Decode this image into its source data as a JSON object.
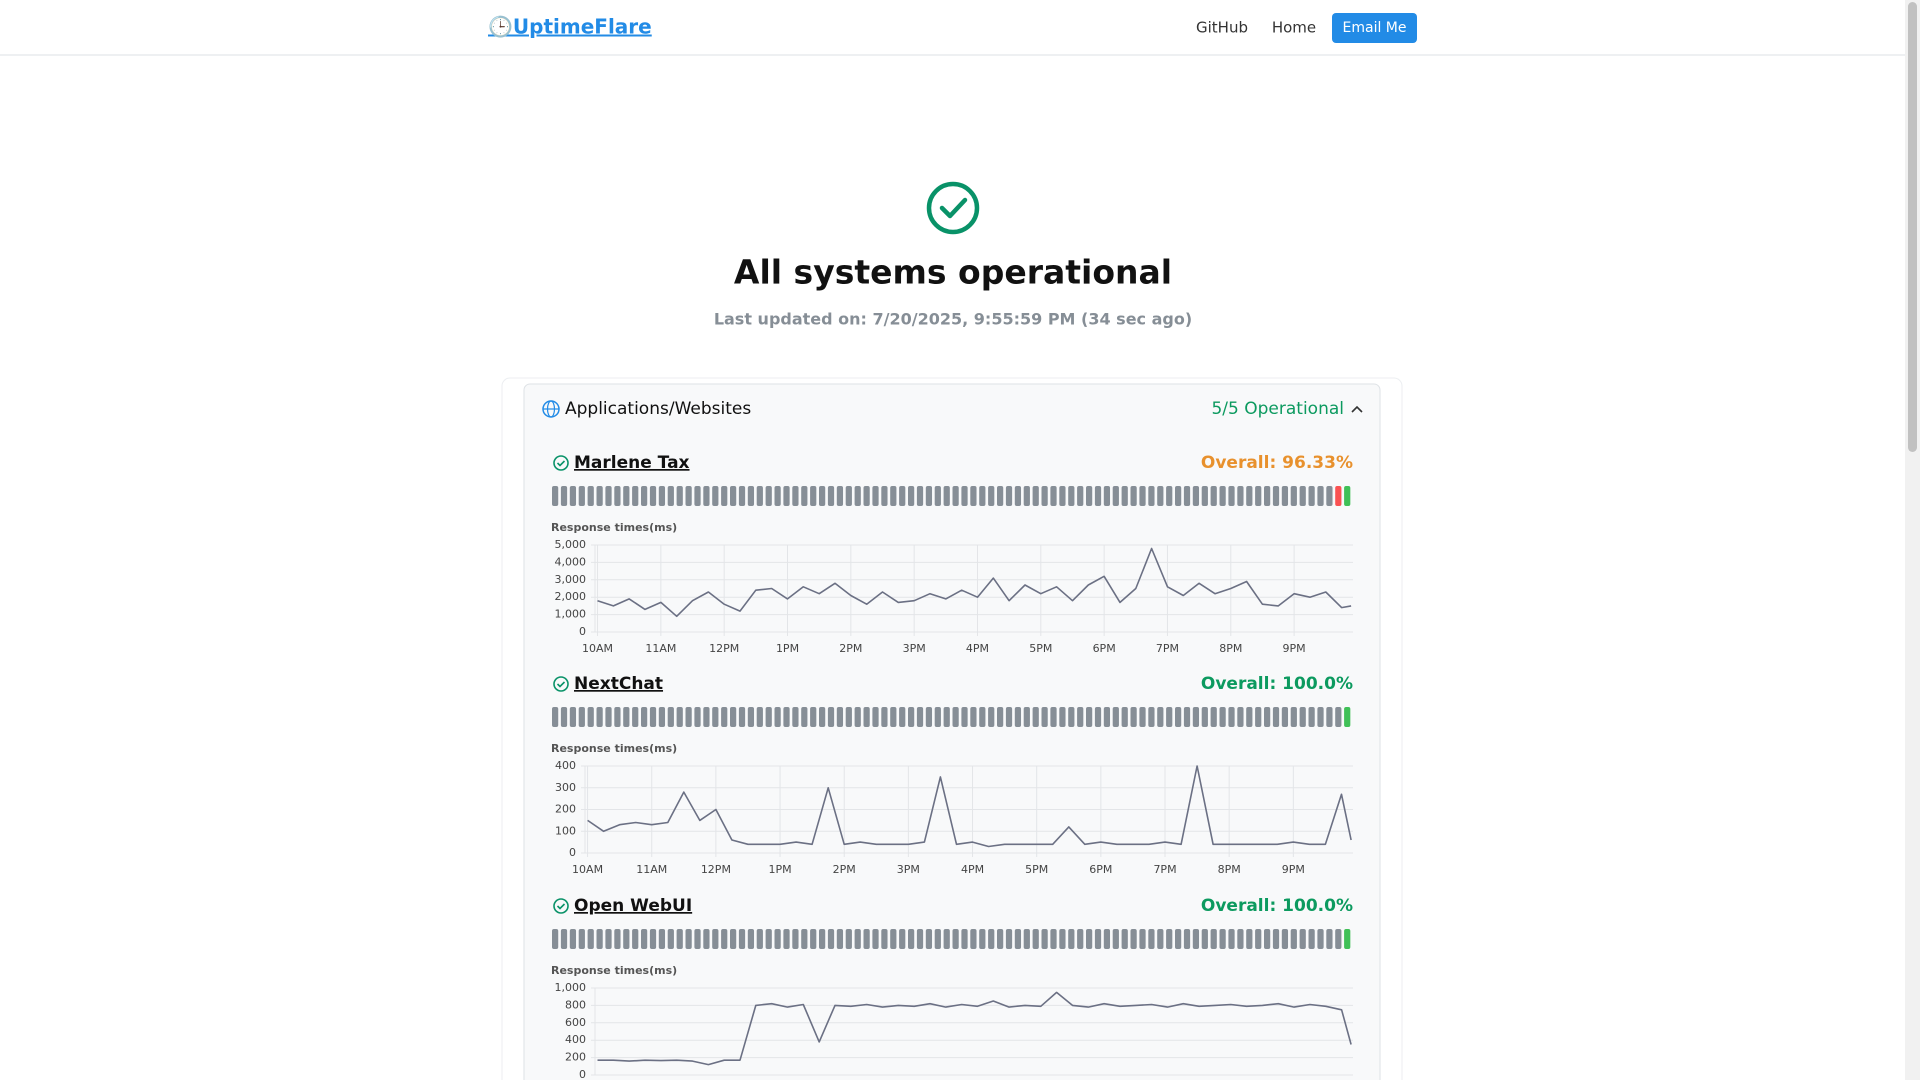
{
  "header": {
    "logo": "🕒UptimeFlare",
    "nav": [
      "GitHub",
      "Home"
    ],
    "button": "Email Me"
  },
  "status": {
    "title": "All systems operational",
    "updated": "Last updated on: 7/20/2025, 9:55:59 PM (34 sec ago)"
  },
  "group": {
    "name": "Applications/Websites",
    "status": "5/5 Operational"
  },
  "monitors": [
    {
      "name": "Marlene Tax",
      "overall": "Overall: 96.33%",
      "overall_color": "#e8912d",
      "bars": [
        "#868e96",
        "#868e96",
        "#868e96",
        "#868e96",
        "#868e96",
        "#868e96",
        "#868e96",
        "#868e96",
        "#868e96",
        "#868e96",
        "#868e96",
        "#868e96",
        "#868e96",
        "#868e96",
        "#868e96",
        "#868e96",
        "#868e96",
        "#868e96",
        "#868e96",
        "#868e96",
        "#868e96",
        "#868e96",
        "#868e96",
        "#868e96",
        "#868e96",
        "#868e96",
        "#868e96",
        "#868e96",
        "#868e96",
        "#868e96",
        "#868e96",
        "#868e96",
        "#868e96",
        "#868e96",
        "#868e96",
        "#868e96",
        "#868e96",
        "#868e96",
        "#868e96",
        "#868e96",
        "#868e96",
        "#868e96",
        "#868e96",
        "#868e96",
        "#868e96",
        "#868e96",
        "#868e96",
        "#868e96",
        "#868e96",
        "#868e96",
        "#868e96",
        "#868e96",
        "#868e96",
        "#868e96",
        "#868e96",
        "#868e96",
        "#868e96",
        "#868e96",
        "#868e96",
        "#868e96",
        "#868e96",
        "#868e96",
        "#868e96",
        "#868e96",
        "#868e96",
        "#868e96",
        "#868e96",
        "#868e96",
        "#868e96",
        "#868e96",
        "#868e96",
        "#868e96",
        "#868e96",
        "#868e96",
        "#868e96",
        "#868e96",
        "#868e96",
        "#868e96",
        "#868e96",
        "#868e96",
        "#868e96",
        "#868e96",
        "#868e96",
        "#868e96",
        "#868e96",
        "#868e96",
        "#868e96",
        "#868e96",
        "#fa5252",
        "#40c057"
      ],
      "chart": {
        "type": "line",
        "ylabel": "Response times(ms)",
        "color": "#6b7084",
        "x": [
          10,
          10.25,
          10.5,
          10.75,
          11,
          11.25,
          11.5,
          11.75,
          12,
          12.25,
          12.5,
          12.75,
          13,
          13.25,
          13.5,
          13.75,
          14,
          14.25,
          14.5,
          14.75,
          15,
          15.25,
          15.5,
          15.75,
          16,
          16.25,
          16.5,
          16.75,
          17,
          17.25,
          17.5,
          17.75,
          18,
          18.25,
          18.5,
          18.75,
          19,
          19.25,
          19.5,
          19.75,
          20,
          20.25,
          20.5,
          20.75,
          21,
          21.25,
          21.5,
          21.75,
          21.9
        ],
        "values": [
          1800,
          1500,
          1900,
          1300,
          1700,
          900,
          1800,
          2300,
          1600,
          1200,
          2400,
          2500,
          1900,
          2600,
          2200,
          2800,
          2100,
          1600,
          2300,
          1700,
          1800,
          2200,
          1900,
          2400,
          2000,
          3100,
          1800,
          2700,
          2200,
          2600,
          1800,
          2700,
          3200,
          1700,
          2500,
          4800,
          2600,
          2100,
          2800,
          2200,
          2500,
          2900,
          1600,
          1500,
          2200,
          2000,
          2300,
          1400,
          1500
        ],
        "xlim": [
          9.96,
          21.93
        ],
        "ylim": [
          0,
          5000
        ],
        "yticks": [
          0,
          {
            "value": 1000,
            "label": "1,000"
          },
          {
            "value": 2000,
            "label": "2,000"
          },
          {
            "value": 3000,
            "label": "3,000"
          },
          {
            "value": 4000,
            "label": "4,000"
          },
          {
            "value": 5000,
            "label": "5,000"
          }
        ],
        "xticks": [
          {
            "value": 10,
            "label": "10AM"
          },
          {
            "value": 11,
            "label": "11AM"
          },
          {
            "value": 12,
            "label": "12PM"
          },
          {
            "value": 13,
            "label": "1PM"
          },
          {
            "value": 14,
            "label": "2PM"
          },
          {
            "value": 15,
            "label": "3PM"
          },
          {
            "value": 16,
            "label": "4PM"
          },
          {
            "value": 17,
            "label": "5PM"
          },
          {
            "value": 18,
            "label": "6PM"
          },
          {
            "value": 19,
            "label": "7PM"
          },
          {
            "value": 20,
            "label": "8PM"
          },
          {
            "value": 21,
            "label": "9PM"
          }
        ],
        "grid": true
      }
    },
    {
      "name": "NextChat",
      "overall": "Overall: 100.0%",
      "overall_color": "#0c9a5f",
      "bars": [
        "#868e96",
        "#868e96",
        "#868e96",
        "#868e96",
        "#868e96",
        "#868e96",
        "#868e96",
        "#868e96",
        "#868e96",
        "#868e96",
        "#868e96",
        "#868e96",
        "#868e96",
        "#868e96",
        "#868e96",
        "#868e96",
        "#868e96",
        "#868e96",
        "#868e96",
        "#868e96",
        "#868e96",
        "#868e96",
        "#868e96",
        "#868e96",
        "#868e96",
        "#868e96",
        "#868e96",
        "#868e96",
        "#868e96",
        "#868e96",
        "#868e96",
        "#868e96",
        "#868e96",
        "#868e96",
        "#868e96",
        "#868e96",
        "#868e96",
        "#868e96",
        "#868e96",
        "#868e96",
        "#868e96",
        "#868e96",
        "#868e96",
        "#868e96",
        "#868e96",
        "#868e96",
        "#868e96",
        "#868e96",
        "#868e96",
        "#868e96",
        "#868e96",
        "#868e96",
        "#868e96",
        "#868e96",
        "#868e96",
        "#868e96",
        "#868e96",
        "#868e96",
        "#868e96",
        "#868e96",
        "#868e96",
        "#868e96",
        "#868e96",
        "#868e96",
        "#868e96",
        "#868e96",
        "#868e96",
        "#868e96",
        "#868e96",
        "#868e96",
        "#868e96",
        "#868e96",
        "#868e96",
        "#868e96",
        "#868e96",
        "#868e96",
        "#868e96",
        "#868e96",
        "#868e96",
        "#868e96",
        "#868e96",
        "#868e96",
        "#868e96",
        "#868e96",
        "#868e96",
        "#868e96",
        "#868e96",
        "#868e96",
        "#868e96",
        "#40c057"
      ],
      "chart": {
        "type": "line",
        "ylabel": "Response times(ms)",
        "color": "#6b7084",
        "x": [
          10,
          10.25,
          10.5,
          10.75,
          11,
          11.25,
          11.5,
          11.75,
          12,
          12.25,
          12.5,
          12.75,
          13,
          13.25,
          13.5,
          13.75,
          14,
          14.25,
          14.5,
          14.75,
          15,
          15.25,
          15.5,
          15.75,
          16,
          16.25,
          16.5,
          16.75,
          17,
          17.25,
          17.5,
          17.75,
          18,
          18.25,
          18.5,
          18.75,
          19,
          19.25,
          19.5,
          19.75,
          20,
          20.25,
          20.5,
          20.75,
          21,
          21.25,
          21.5,
          21.75,
          21.9
        ],
        "values": [
          150,
          100,
          130,
          140,
          130,
          140,
          280,
          150,
          200,
          60,
          40,
          40,
          40,
          50,
          40,
          300,
          40,
          50,
          40,
          40,
          40,
          50,
          350,
          40,
          50,
          30,
          40,
          40,
          40,
          40,
          120,
          40,
          50,
          40,
          40,
          40,
          50,
          40,
          400,
          40,
          40,
          40,
          40,
          40,
          50,
          40,
          40,
          270,
          60
        ],
        "xlim": [
          9.96,
          21.93
        ],
        "ylim": [
          0,
          400
        ],
        "yticks": [
          0,
          100,
          200,
          300,
          400
        ],
        "xticks": [
          {
            "value": 10,
            "label": "10AM"
          },
          {
            "value": 11,
            "label": "11AM"
          },
          {
            "value": 12,
            "label": "12PM"
          },
          {
            "value": 13,
            "label": "1PM"
          },
          {
            "value": 14,
            "label": "2PM"
          },
          {
            "value": 15,
            "label": "3PM"
          },
          {
            "value": 16,
            "label": "4PM"
          },
          {
            "value": 17,
            "label": "5PM"
          },
          {
            "value": 18,
            "label": "6PM"
          },
          {
            "value": 19,
            "label": "7PM"
          },
          {
            "value": 20,
            "label": "8PM"
          },
          {
            "value": 21,
            "label": "9PM"
          }
        ],
        "grid": true
      }
    },
    {
      "name": "Open WebUI",
      "overall": "Overall: 100.0%",
      "overall_color": "#0c9a5f",
      "bars": [
        "#868e96",
        "#868e96",
        "#868e96",
        "#868e96",
        "#868e96",
        "#868e96",
        "#868e96",
        "#868e96",
        "#868e96",
        "#868e96",
        "#868e96",
        "#868e96",
        "#868e96",
        "#868e96",
        "#868e96",
        "#868e96",
        "#868e96",
        "#868e96",
        "#868e96",
        "#868e96",
        "#868e96",
        "#868e96",
        "#868e96",
        "#868e96",
        "#868e96",
        "#868e96",
        "#868e96",
        "#868e96",
        "#868e96",
        "#868e96",
        "#868e96",
        "#868e96",
        "#868e96",
        "#868e96",
        "#868e96",
        "#868e96",
        "#868e96",
        "#868e96",
        "#868e96",
        "#868e96",
        "#868e96",
        "#868e96",
        "#868e96",
        "#868e96",
        "#868e96",
        "#868e96",
        "#868e96",
        "#868e96",
        "#868e96",
        "#868e96",
        "#868e96",
        "#868e96",
        "#868e96",
        "#868e96",
        "#868e96",
        "#868e96",
        "#868e96",
        "#868e96",
        "#868e96",
        "#868e96",
        "#868e96",
        "#868e96",
        "#868e96",
        "#868e96",
        "#868e96",
        "#868e96",
        "#868e96",
        "#868e96",
        "#868e96",
        "#868e96",
        "#868e96",
        "#868e96",
        "#868e96",
        "#868e96",
        "#868e96",
        "#868e96",
        "#868e96",
        "#868e96",
        "#868e96",
        "#868e96",
        "#868e96",
        "#868e96",
        "#868e96",
        "#868e96",
        "#868e96",
        "#868e96",
        "#868e96",
        "#868e96",
        "#868e96",
        "#40c057"
      ],
      "chart": {
        "type": "line",
        "ylabel": "Response times(ms)",
        "color": "#6b7084",
        "x": [
          10,
          10.25,
          10.5,
          10.75,
          11,
          11.25,
          11.5,
          11.75,
          12,
          12.25,
          12.5,
          12.75,
          13,
          13.25,
          13.5,
          13.75,
          14,
          14.25,
          14.5,
          14.75,
          15,
          15.25,
          15.5,
          15.75,
          16,
          16.25,
          16.5,
          16.75,
          17,
          17.25,
          17.5,
          17.75,
          18,
          18.25,
          18.5,
          18.75,
          19,
          19.25,
          19.5,
          19.75,
          20,
          20.25,
          20.5,
          20.75,
          21,
          21.25,
          21.5,
          21.75,
          21.9
        ],
        "values": [
          170,
          170,
          160,
          170,
          165,
          170,
          160,
          120,
          170,
          170,
          800,
          820,
          780,
          810,
          380,
          800,
          790,
          810,
          780,
          800,
          790,
          820,
          780,
          810,
          790,
          850,
          780,
          800,
          790,
          950,
          800,
          780,
          820,
          790,
          800,
          810,
          780,
          820,
          790,
          800,
          810,
          790,
          800,
          820,
          780,
          810,
          790,
          750,
          350
        ],
        "xlim": [
          9.96,
          21.93
        ],
        "ylim": [
          0,
          1000
        ],
        "yticks": [
          0,
          200,
          400,
          600,
          800,
          {
            "value": 1000,
            "label": "1,000"
          }
        ],
        "grid": true
      }
    }
  ]
}
